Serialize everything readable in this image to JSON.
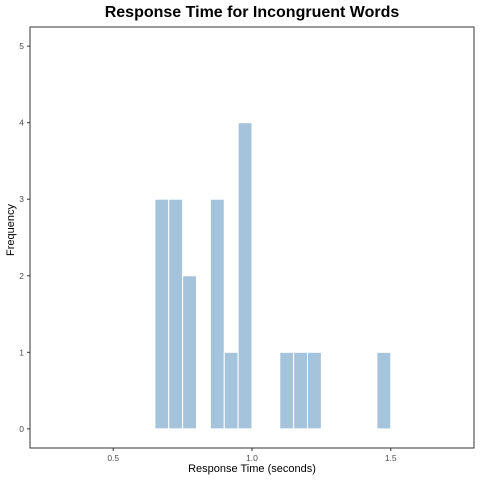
{
  "chart_data": {
    "type": "bar",
    "title": "Response Time for Incongruent Words",
    "xlabel": "Response Time (seconds)",
    "ylabel": "Frequency",
    "xlim": [
      0.2,
      1.8
    ],
    "ylim": [
      -0.25,
      5.25
    ],
    "x_ticks": [
      0.5,
      1.0,
      1.5
    ],
    "x_tick_labels": [
      "0.5",
      "1.0",
      "1.5"
    ],
    "y_ticks": [
      0,
      1,
      2,
      3,
      4,
      5
    ],
    "y_tick_labels": [
      "0",
      "1",
      "2",
      "3",
      "4",
      "5"
    ],
    "bin_width": 0.05,
    "bins": [
      {
        "x_start": 0.65,
        "count": 3
      },
      {
        "x_start": 0.7,
        "count": 3
      },
      {
        "x_start": 0.75,
        "count": 2
      },
      {
        "x_start": 0.85,
        "count": 3
      },
      {
        "x_start": 0.9,
        "count": 1
      },
      {
        "x_start": 0.95,
        "count": 4
      },
      {
        "x_start": 1.1,
        "count": 1
      },
      {
        "x_start": 1.15,
        "count": 1
      },
      {
        "x_start": 1.2,
        "count": 1
      },
      {
        "x_start": 1.45,
        "count": 1
      }
    ],
    "bar_color": "#a6c3dc",
    "bar_edge_color": "#ffffff",
    "grid": false,
    "legend": "none"
  }
}
